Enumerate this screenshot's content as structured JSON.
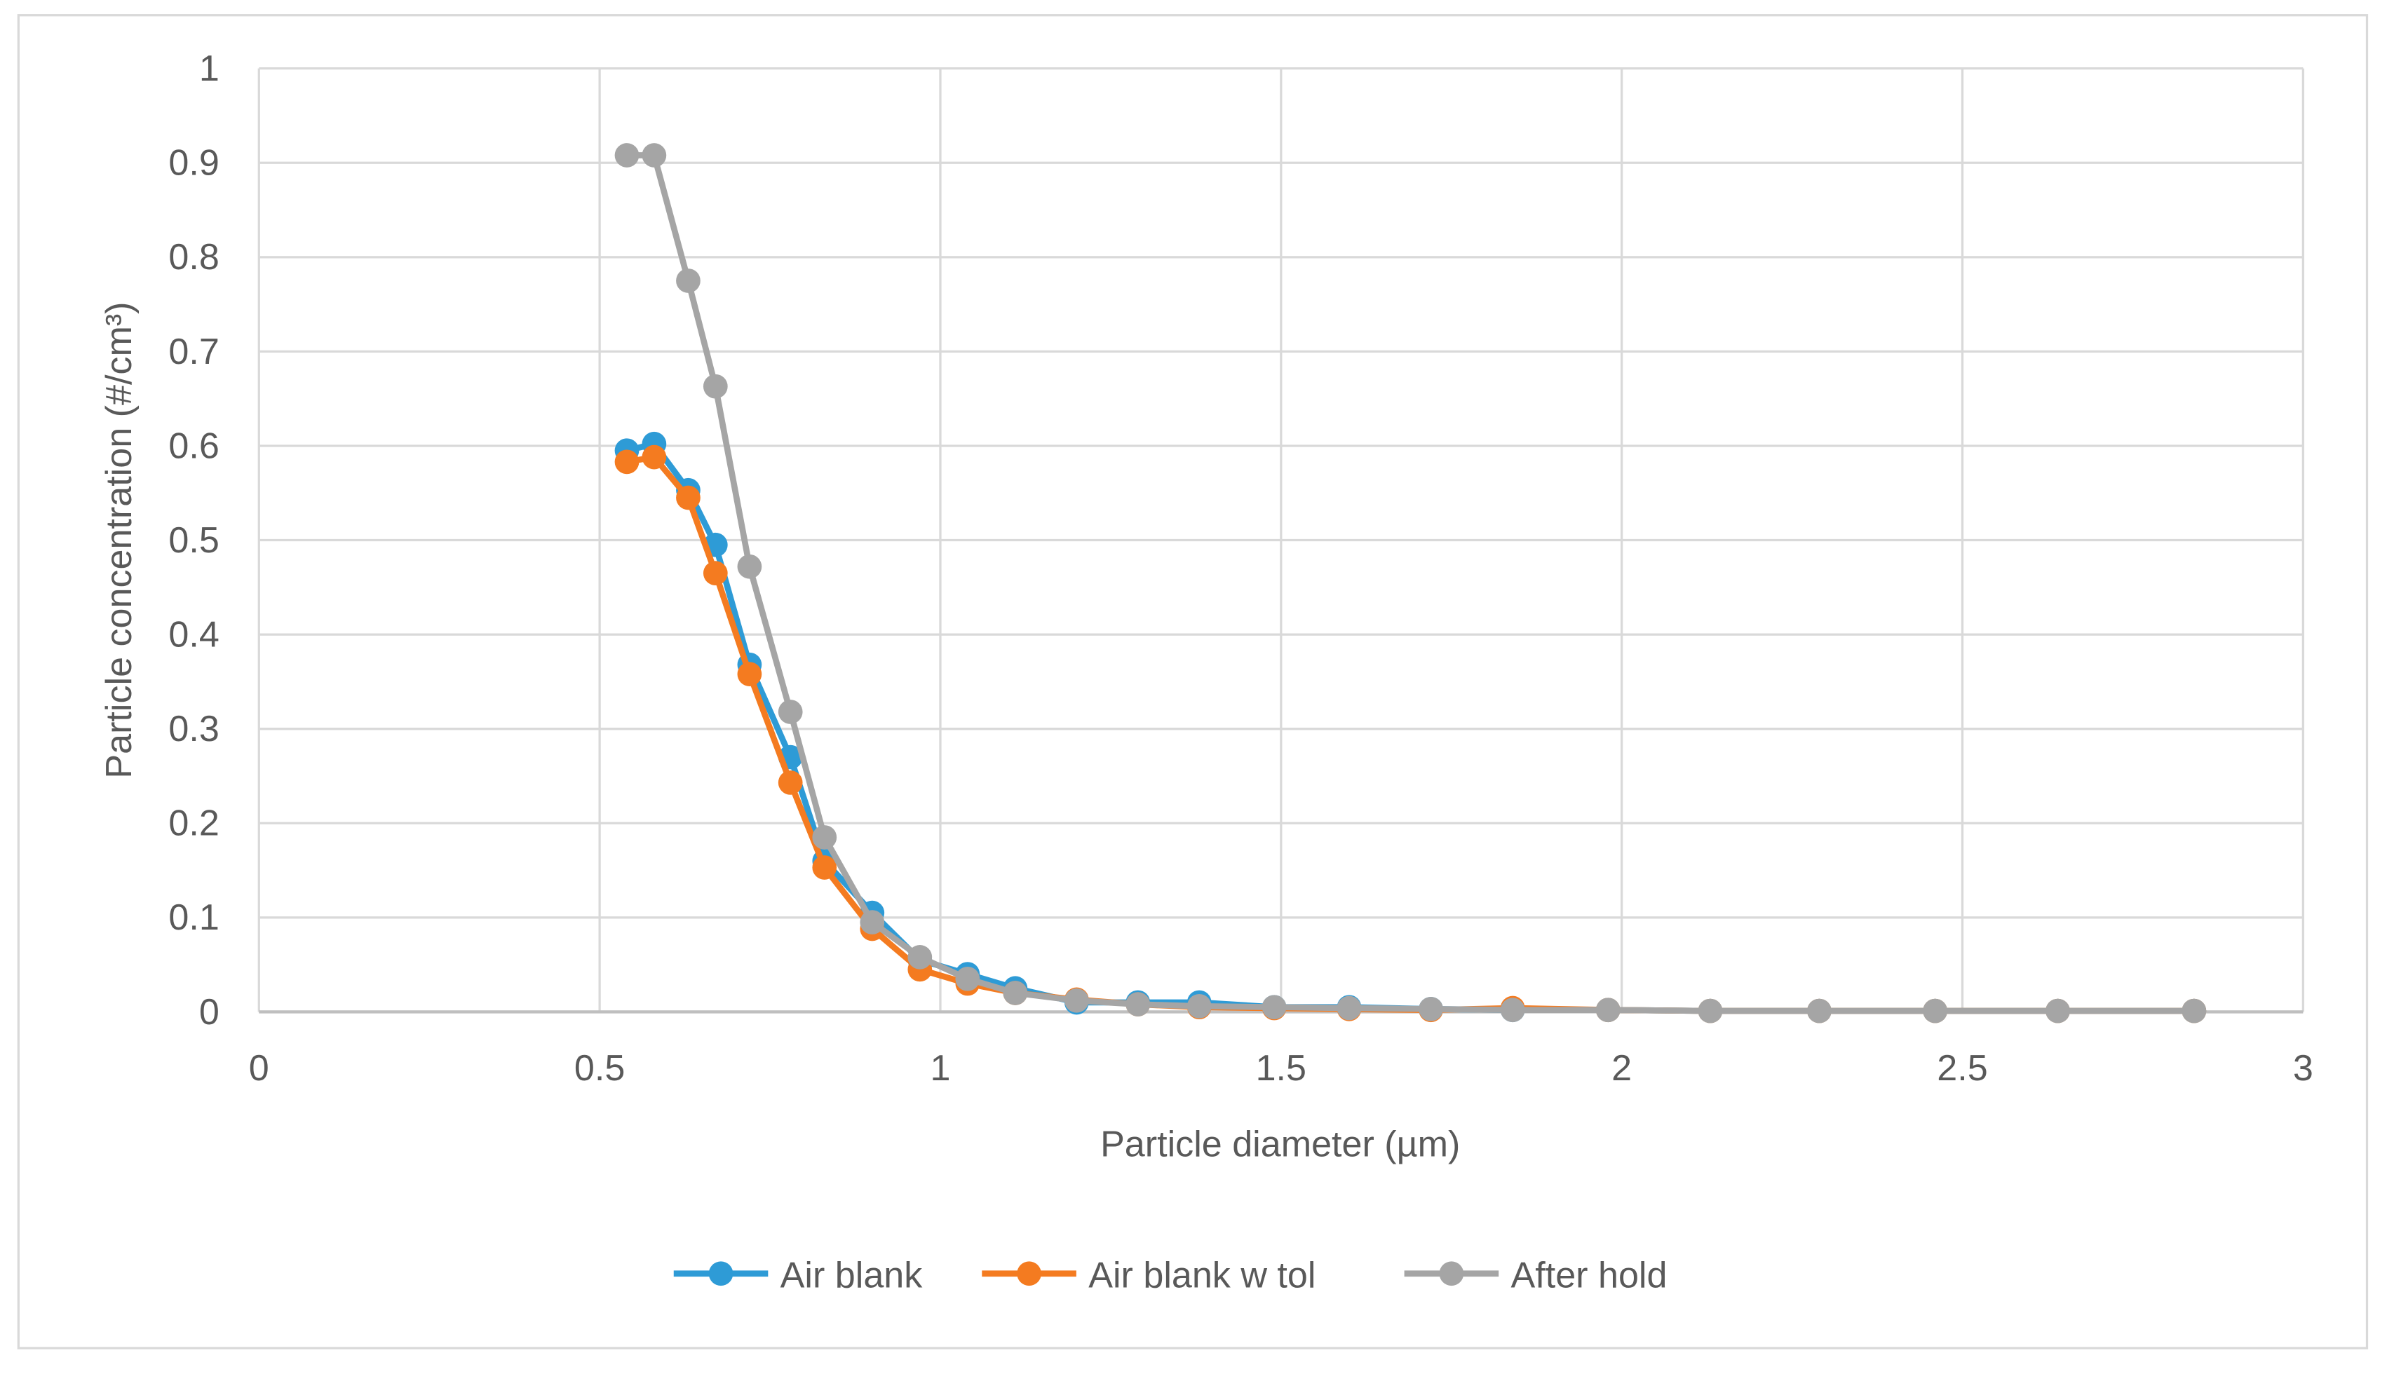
{
  "chart_data": {
    "type": "line",
    "x_label": "Particle diameter (µm)",
    "y_label": "Particle concentration (#/cm³)",
    "x": [
      0.54,
      0.58,
      0.63,
      0.67,
      0.72,
      0.78,
      0.83,
      0.9,
      0.97,
      1.04,
      1.11,
      1.2,
      1.29,
      1.38,
      1.49,
      1.6,
      1.72,
      1.84,
      1.98,
      2.13,
      2.29,
      2.46,
      2.64,
      2.84
    ],
    "series": [
      {
        "name": "Air blank",
        "color": "#2e9bd6",
        "values": [
          0.595,
          0.602,
          0.553,
          0.495,
          0.368,
          0.27,
          0.16,
          0.105,
          0.055,
          0.04,
          0.025,
          0.01,
          0.01,
          0.01,
          0.005,
          0.005,
          0.003,
          0.002,
          0.002,
          0.001,
          0.001,
          0.001,
          0.001,
          0.001
        ]
      },
      {
        "name": "Air blank w tol",
        "color": "#f47b20",
        "values": [
          0.583,
          0.588,
          0.545,
          0.465,
          0.358,
          0.243,
          0.153,
          0.088,
          0.045,
          0.03,
          0.02,
          0.013,
          0.008,
          0.005,
          0.004,
          0.003,
          0.002,
          0.004,
          0.002,
          0.001,
          0.001,
          0.001,
          0.001,
          0.001
        ]
      },
      {
        "name": "After hold",
        "color": "#a5a5a5",
        "values": [
          0.908,
          0.908,
          0.775,
          0.663,
          0.472,
          0.318,
          0.185,
          0.095,
          0.058,
          0.035,
          0.02,
          0.012,
          0.008,
          0.006,
          0.005,
          0.004,
          0.003,
          0.002,
          0.002,
          0.001,
          0.001,
          0.001,
          0.001,
          0.001
        ]
      }
    ],
    "xlim": [
      0,
      3
    ],
    "xticks": [
      0,
      0.5,
      1,
      1.5,
      2,
      2.5,
      3
    ],
    "ylim": [
      0,
      1
    ],
    "yticks": [
      0,
      0.1,
      0.2,
      0.3,
      0.4,
      0.5,
      0.6,
      0.7,
      0.8,
      0.9,
      1
    ],
    "grid": true,
    "legend": "bottom"
  }
}
